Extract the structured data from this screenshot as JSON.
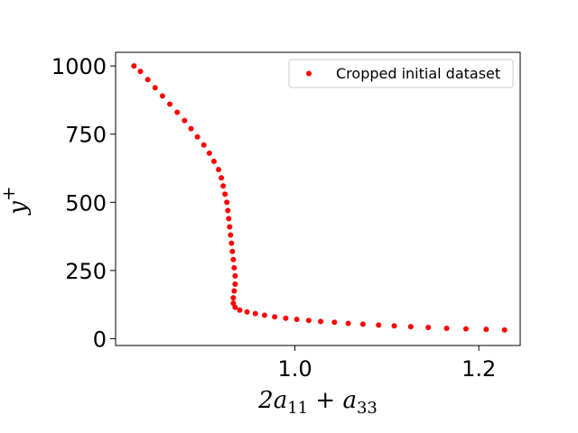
{
  "chart_data": {
    "type": "scatter",
    "xlabel": "2a11 + a33",
    "ylabel": "y+",
    "xlim": [
      0.805,
      1.245
    ],
    "ylim": [
      -25,
      1050
    ],
    "xticks": [
      1.0,
      1.2
    ],
    "yticks": [
      0,
      250,
      500,
      750,
      1000
    ],
    "xtick_labels": [
      "1.0",
      "1.2"
    ],
    "ytick_labels": [
      "0",
      "250",
      "500",
      "750",
      "1000"
    ],
    "legend_position": "top-right",
    "series": [
      {
        "name": "Cropped initial dataset",
        "color": "#ff0000",
        "points": [
          [
            0.825,
            1000
          ],
          [
            0.832,
            980
          ],
          [
            0.84,
            950
          ],
          [
            0.848,
            920
          ],
          [
            0.856,
            890
          ],
          [
            0.864,
            860
          ],
          [
            0.872,
            830
          ],
          [
            0.88,
            800
          ],
          [
            0.887,
            770
          ],
          [
            0.894,
            740
          ],
          [
            0.901,
            710
          ],
          [
            0.907,
            680
          ],
          [
            0.912,
            650
          ],
          [
            0.917,
            620
          ],
          [
            0.92,
            590
          ],
          [
            0.922,
            560
          ],
          [
            0.924,
            530
          ],
          [
            0.926,
            500
          ],
          [
            0.927,
            470
          ],
          [
            0.928,
            440
          ],
          [
            0.929,
            410
          ],
          [
            0.93,
            380
          ],
          [
            0.931,
            350
          ],
          [
            0.932,
            320
          ],
          [
            0.933,
            290
          ],
          [
            0.934,
            260
          ],
          [
            0.935,
            230
          ],
          [
            0.935,
            200
          ],
          [
            0.934,
            175
          ],
          [
            0.933,
            150
          ],
          [
            0.933,
            130
          ],
          [
            0.935,
            115
          ],
          [
            0.94,
            105
          ],
          [
            0.948,
            98
          ],
          [
            0.957,
            92
          ],
          [
            0.967,
            86
          ],
          [
            0.978,
            80
          ],
          [
            0.99,
            75
          ],
          [
            1.002,
            71
          ],
          [
            1.015,
            67
          ],
          [
            1.028,
            63
          ],
          [
            1.043,
            60
          ],
          [
            1.058,
            56
          ],
          [
            1.074,
            53
          ],
          [
            1.091,
            50
          ],
          [
            1.108,
            47
          ],
          [
            1.126,
            44
          ],
          [
            1.145,
            41
          ],
          [
            1.165,
            38
          ],
          [
            1.186,
            36
          ],
          [
            1.208,
            34
          ],
          [
            1.228,
            32
          ]
        ]
      }
    ]
  }
}
